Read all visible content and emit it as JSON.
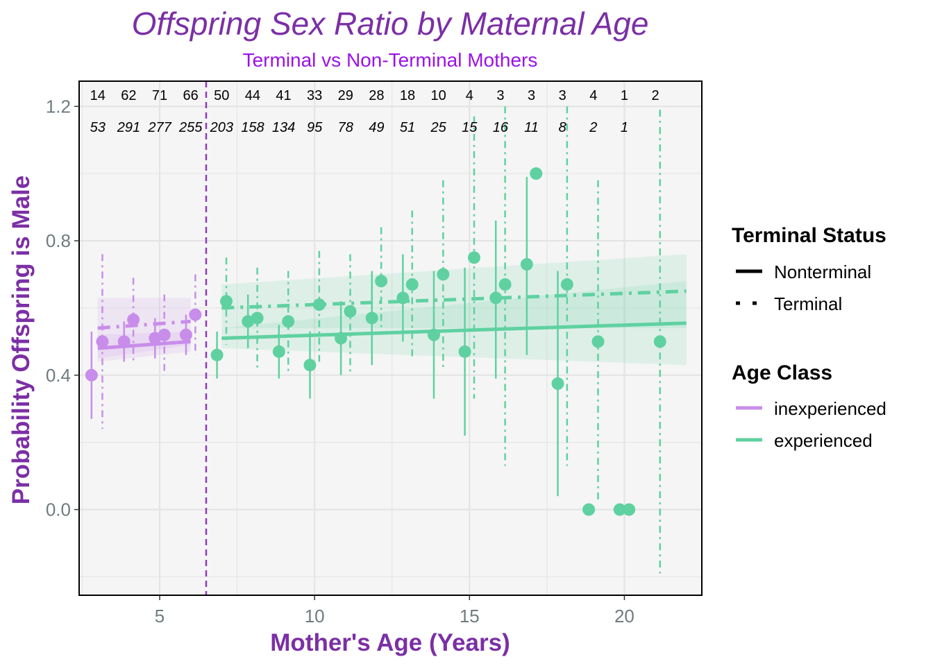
{
  "colors": {
    "inexperienced": "#C88DEA",
    "experienced": "#5FD1A0",
    "title": "#7B2FA5",
    "subtitle": "#9A12E8",
    "axis_text": "#6E7B80",
    "vline": "#8E3BBE",
    "panel_bg": "#F5F5F5",
    "grid": "#E3E3E3"
  },
  "chart_data": {
    "type": "scatter",
    "title": "Offspring Sex Ratio by Maternal Age",
    "subtitle": "Terminal vs Non-Terminal Mothers",
    "xlabel": "Mother's Age (Years)",
    "ylabel": "Probability Offspring is Male",
    "xlim": [
      2.4,
      22.5
    ],
    "ylim": [
      -0.255,
      1.275
    ],
    "x_ticks": [
      5,
      10,
      15,
      20
    ],
    "y_ticks": [
      0.0,
      0.4,
      0.8,
      1.2
    ],
    "y_tick_labels": [
      "0.0",
      "0.4",
      "0.8",
      "1.2"
    ],
    "grid": true,
    "legend_position": "right",
    "vline_age": 6.5,
    "legends": {
      "terminal_status": {
        "title": "Terminal Status",
        "items": [
          {
            "label": "Nonterminal",
            "linetype": "solid"
          },
          {
            "label": "Terminal",
            "linetype": "dotted"
          }
        ]
      },
      "age_class": {
        "title": "Age Class",
        "items": [
          {
            "label": "inexperienced",
            "color_key": "inexperienced"
          },
          {
            "label": "experienced",
            "color_key": "experienced"
          }
        ]
      }
    },
    "count_labels": [
      {
        "age": 3,
        "terminal": "14",
        "nonterminal": "53"
      },
      {
        "age": 4,
        "terminal": "62",
        "nonterminal": "291"
      },
      {
        "age": 5,
        "terminal": "71",
        "nonterminal": "277"
      },
      {
        "age": 6,
        "terminal": "66",
        "nonterminal": "255"
      },
      {
        "age": 7,
        "terminal": "50",
        "nonterminal": "203"
      },
      {
        "age": 8,
        "terminal": "44",
        "nonterminal": "158"
      },
      {
        "age": 9,
        "terminal": "41",
        "nonterminal": "134"
      },
      {
        "age": 10,
        "terminal": "33",
        "nonterminal": "95"
      },
      {
        "age": 11,
        "terminal": "29",
        "nonterminal": "78"
      },
      {
        "age": 12,
        "terminal": "28",
        "nonterminal": "49"
      },
      {
        "age": 13,
        "terminal": "18",
        "nonterminal": "51"
      },
      {
        "age": 14,
        "terminal": "10",
        "nonterminal": "25"
      },
      {
        "age": 15,
        "terminal": "4",
        "nonterminal": "15"
      },
      {
        "age": 16,
        "terminal": "3",
        "nonterminal": "16"
      },
      {
        "age": 17,
        "terminal": "3",
        "nonterminal": "11"
      },
      {
        "age": 18,
        "terminal": "3",
        "nonterminal": "8"
      },
      {
        "age": 19,
        "terminal": "4",
        "nonterminal": "2"
      },
      {
        "age": 20,
        "terminal": "1",
        "nonterminal": "1"
      },
      {
        "age": 21,
        "terminal": "2",
        "nonterminal": ""
      }
    ],
    "points": [
      {
        "age": 2.8,
        "y": 0.4,
        "lo": 0.27,
        "hi": 0.53,
        "class": "inexperienced",
        "status": "nonterminal"
      },
      {
        "age": 3.15,
        "y": 0.5,
        "lo": 0.24,
        "hi": 0.76,
        "class": "inexperienced",
        "status": "terminal"
      },
      {
        "age": 3.85,
        "y": 0.5,
        "lo": 0.44,
        "hi": 0.56,
        "class": "inexperienced",
        "status": "nonterminal"
      },
      {
        "age": 4.15,
        "y": 0.565,
        "lo": 0.44,
        "hi": 0.69,
        "class": "inexperienced",
        "status": "terminal"
      },
      {
        "age": 4.85,
        "y": 0.51,
        "lo": 0.45,
        "hi": 0.57,
        "class": "inexperienced",
        "status": "nonterminal"
      },
      {
        "age": 5.15,
        "y": 0.52,
        "lo": 0.4,
        "hi": 0.64,
        "class": "inexperienced",
        "status": "terminal"
      },
      {
        "age": 5.85,
        "y": 0.52,
        "lo": 0.46,
        "hi": 0.58,
        "class": "inexperienced",
        "status": "nonterminal"
      },
      {
        "age": 6.15,
        "y": 0.58,
        "lo": 0.46,
        "hi": 0.7,
        "class": "inexperienced",
        "status": "terminal"
      },
      {
        "age": 6.85,
        "y": 0.46,
        "lo": 0.39,
        "hi": 0.53,
        "class": "experienced",
        "status": "nonterminal"
      },
      {
        "age": 7.15,
        "y": 0.62,
        "lo": 0.49,
        "hi": 0.75,
        "class": "experienced",
        "status": "terminal"
      },
      {
        "age": 7.85,
        "y": 0.56,
        "lo": 0.48,
        "hi": 0.64,
        "class": "experienced",
        "status": "nonterminal"
      },
      {
        "age": 8.15,
        "y": 0.57,
        "lo": 0.42,
        "hi": 0.72,
        "class": "experienced",
        "status": "terminal"
      },
      {
        "age": 8.85,
        "y": 0.47,
        "lo": 0.39,
        "hi": 0.55,
        "class": "experienced",
        "status": "nonterminal"
      },
      {
        "age": 9.15,
        "y": 0.56,
        "lo": 0.41,
        "hi": 0.71,
        "class": "experienced",
        "status": "terminal"
      },
      {
        "age": 9.85,
        "y": 0.43,
        "lo": 0.33,
        "hi": 0.53,
        "class": "experienced",
        "status": "nonterminal"
      },
      {
        "age": 10.15,
        "y": 0.61,
        "lo": 0.44,
        "hi": 0.77,
        "class": "experienced",
        "status": "terminal"
      },
      {
        "age": 10.85,
        "y": 0.51,
        "lo": 0.4,
        "hi": 0.62,
        "class": "experienced",
        "status": "nonterminal"
      },
      {
        "age": 11.15,
        "y": 0.59,
        "lo": 0.41,
        "hi": 0.76,
        "class": "experienced",
        "status": "terminal"
      },
      {
        "age": 11.85,
        "y": 0.57,
        "lo": 0.43,
        "hi": 0.71,
        "class": "experienced",
        "status": "nonterminal"
      },
      {
        "age": 12.15,
        "y": 0.68,
        "lo": 0.52,
        "hi": 0.84,
        "class": "experienced",
        "status": "terminal"
      },
      {
        "age": 12.85,
        "y": 0.63,
        "lo": 0.5,
        "hi": 0.76,
        "class": "experienced",
        "status": "nonterminal"
      },
      {
        "age": 13.15,
        "y": 0.67,
        "lo": 0.45,
        "hi": 0.89,
        "class": "experienced",
        "status": "terminal"
      },
      {
        "age": 13.85,
        "y": 0.52,
        "lo": 0.33,
        "hi": 0.71,
        "class": "experienced",
        "status": "nonterminal"
      },
      {
        "age": 14.15,
        "y": 0.7,
        "lo": 0.42,
        "hi": 0.98,
        "class": "experienced",
        "status": "terminal"
      },
      {
        "age": 14.85,
        "y": 0.47,
        "lo": 0.22,
        "hi": 0.72,
        "class": "experienced",
        "status": "nonterminal"
      },
      {
        "age": 15.15,
        "y": 0.75,
        "lo": 0.33,
        "hi": 1.17,
        "class": "experienced",
        "status": "terminal"
      },
      {
        "age": 15.85,
        "y": 0.63,
        "lo": 0.39,
        "hi": 0.86,
        "class": "experienced",
        "status": "nonterminal"
      },
      {
        "age": 16.15,
        "y": 0.67,
        "lo": 0.13,
        "hi": 1.2,
        "class": "experienced",
        "status": "terminal"
      },
      {
        "age": 16.85,
        "y": 0.73,
        "lo": 0.46,
        "hi": 0.99,
        "class": "experienced",
        "status": "nonterminal"
      },
      {
        "age": 17.15,
        "y": 1.0,
        "lo": 1.0,
        "hi": 1.0,
        "class": "experienced",
        "status": "terminal"
      },
      {
        "age": 17.85,
        "y": 0.375,
        "lo": 0.04,
        "hi": 0.71,
        "class": "experienced",
        "status": "nonterminal"
      },
      {
        "age": 18.15,
        "y": 0.67,
        "lo": 0.13,
        "hi": 1.2,
        "class": "experienced",
        "status": "terminal"
      },
      {
        "age": 18.85,
        "y": 0.0,
        "lo": 0.0,
        "hi": 0.0,
        "class": "experienced",
        "status": "nonterminal"
      },
      {
        "age": 19.15,
        "y": 0.5,
        "lo": 0.02,
        "hi": 0.98,
        "class": "experienced",
        "status": "terminal"
      },
      {
        "age": 19.85,
        "y": 0.0,
        "lo": 0.0,
        "hi": 0.0,
        "class": "experienced",
        "status": "nonterminal"
      },
      {
        "age": 20.15,
        "y": 0.0,
        "lo": 0.0,
        "hi": 0.0,
        "class": "experienced",
        "status": "terminal"
      },
      {
        "age": 21.15,
        "y": 0.5,
        "lo": -0.19,
        "hi": 1.19,
        "class": "experienced",
        "status": "terminal"
      }
    ],
    "trends": [
      {
        "class": "inexperienced",
        "status": "nonterminal",
        "x": [
          3.0,
          6.0
        ],
        "y": [
          0.48,
          0.5
        ],
        "ribbon_lo": [
          0.44,
          0.47
        ],
        "ribbon_hi": [
          0.52,
          0.53
        ]
      },
      {
        "class": "inexperienced",
        "status": "terminal",
        "x": [
          3.0,
          6.0
        ],
        "y": [
          0.54,
          0.56
        ],
        "ribbon_lo": [
          0.45,
          0.49
        ],
        "ribbon_hi": [
          0.63,
          0.63
        ]
      },
      {
        "class": "experienced",
        "status": "nonterminal",
        "x": [
          7.0,
          22.0
        ],
        "y": [
          0.51,
          0.555
        ],
        "ribbon_lo": [
          0.48,
          0.43
        ],
        "ribbon_hi": [
          0.54,
          0.68
        ]
      },
      {
        "class": "experienced",
        "status": "terminal",
        "x": [
          7.0,
          22.0
        ],
        "y": [
          0.6,
          0.65
        ],
        "ribbon_lo": [
          0.54,
          0.54
        ],
        "ribbon_hi": [
          0.67,
          0.76
        ]
      }
    ]
  }
}
